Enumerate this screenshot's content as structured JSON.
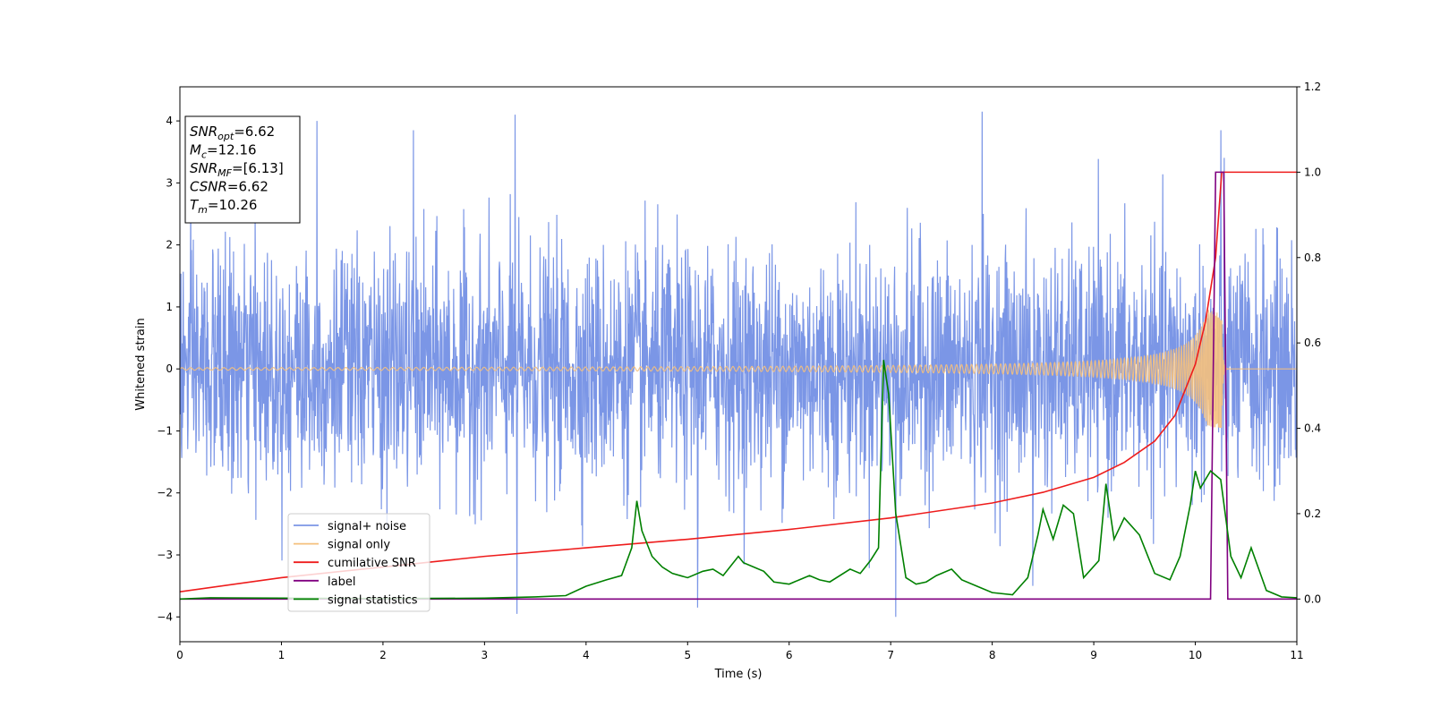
{
  "chart_data": {
    "type": "line",
    "xlabel": "Time (s)",
    "ylabel": "Whitened strain",
    "xlim": [
      0,
      11
    ],
    "ylim_left": [
      -4.4,
      4.55
    ],
    "ylim_right": [
      -0.1,
      1.2
    ],
    "xticks": [
      0,
      1,
      2,
      3,
      4,
      5,
      6,
      7,
      8,
      9,
      10,
      11
    ],
    "yticks_left": [
      -4,
      -3,
      -2,
      -1,
      0,
      1,
      2,
      3,
      4
    ],
    "yticks_right": [
      0.0,
      0.2,
      0.4,
      0.6,
      0.8,
      1.0,
      1.2
    ],
    "ytick_labels_left": [
      "−4",
      "−3",
      "−2",
      "−1",
      "0",
      "1",
      "2",
      "3",
      "4"
    ],
    "ytick_labels_right": [
      "0.0",
      "0.2",
      "0.4",
      "0.6",
      "0.8",
      "1.0",
      "1.2"
    ],
    "legend_position": "lower-left",
    "textbox": {
      "lines": [
        {
          "sym": "SNR",
          "sub": "opt",
          "val": "=6.62"
        },
        {
          "sym": "M",
          "sub": "c",
          "val": "=12.16"
        },
        {
          "sym": "SNR",
          "sub": "MF",
          "val": "=[6.13]"
        },
        {
          "sym": "CSNR",
          "sub": "",
          "val": "=6.62"
        },
        {
          "sym": "T",
          "sub": "m",
          "val": "=10.26"
        }
      ]
    },
    "series": [
      {
        "name": "signal+ noise",
        "color": "#7b96e6",
        "axis": "left",
        "noise_std": 0.95,
        "clip": [
          -3.95,
          4.15
        ],
        "peaks": [
          [
            3.3,
            4.1
          ],
          [
            2.3,
            3.85
          ],
          [
            7.9,
            4.15
          ],
          [
            1.35,
            4.0
          ],
          [
            10.25,
            3.85
          ],
          [
            3.32,
            -3.95
          ],
          [
            7.05,
            -4.0
          ],
          [
            5.1,
            -3.85
          ],
          [
            8.4,
            -3.5
          ]
        ]
      },
      {
        "name": "signal only",
        "color": "#f5c07c",
        "axis": "left",
        "amplitude_start": 0.02,
        "merger_time": 10.26,
        "peak_amplitude": 0.95
      },
      {
        "name": "cumilative SNR",
        "color": "#ee1c1c",
        "axis": "right",
        "x": [
          0,
          1,
          2,
          3,
          4,
          5,
          6,
          7,
          8,
          8.5,
          9,
          9.3,
          9.6,
          9.8,
          10.0,
          10.1,
          10.2,
          10.26,
          11
        ],
        "y": [
          0.017,
          0.05,
          0.075,
          0.1,
          0.12,
          0.14,
          0.163,
          0.19,
          0.225,
          0.25,
          0.285,
          0.32,
          0.37,
          0.43,
          0.55,
          0.65,
          0.8,
          1.0,
          1.0
        ]
      },
      {
        "name": "label",
        "color": "#800080",
        "axis": "right",
        "x": [
          0,
          10.15,
          10.2,
          10.28,
          10.32,
          11
        ],
        "y": [
          0,
          0,
          1,
          1,
          0,
          0
        ]
      },
      {
        "name": "signal statistics",
        "color": "#008000",
        "axis": "right",
        "x": [
          0,
          0.3,
          1,
          2,
          3,
          3.5,
          3.8,
          4,
          4.2,
          4.35,
          4.45,
          4.5,
          4.55,
          4.65,
          4.75,
          4.85,
          5,
          5.15,
          5.25,
          5.35,
          5.5,
          5.55,
          5.65,
          5.75,
          5.85,
          6,
          6.1,
          6.2,
          6.3,
          6.4,
          6.6,
          6.7,
          6.8,
          6.88,
          6.93,
          6.98,
          7.05,
          7.15,
          7.25,
          7.35,
          7.45,
          7.6,
          7.7,
          7.85,
          8.0,
          8.2,
          8.35,
          8.45,
          8.5,
          8.6,
          8.7,
          8.8,
          8.9,
          9.05,
          9.12,
          9.2,
          9.3,
          9.45,
          9.6,
          9.75,
          9.85,
          9.95,
          10.0,
          10.05,
          10.15,
          10.25,
          10.35,
          10.45,
          10.55,
          10.7,
          10.85,
          11.0
        ],
        "y": [
          0.0,
          0.003,
          0.002,
          0.001,
          0.002,
          0.005,
          0.008,
          0.03,
          0.045,
          0.055,
          0.12,
          0.23,
          0.16,
          0.1,
          0.075,
          0.06,
          0.05,
          0.065,
          0.07,
          0.055,
          0.1,
          0.085,
          0.075,
          0.065,
          0.04,
          0.035,
          0.045,
          0.055,
          0.045,
          0.04,
          0.07,
          0.06,
          0.09,
          0.12,
          0.56,
          0.48,
          0.2,
          0.05,
          0.035,
          0.04,
          0.055,
          0.07,
          0.045,
          0.03,
          0.015,
          0.01,
          0.05,
          0.15,
          0.21,
          0.14,
          0.22,
          0.2,
          0.05,
          0.09,
          0.27,
          0.14,
          0.19,
          0.15,
          0.06,
          0.045,
          0.1,
          0.22,
          0.3,
          0.26,
          0.3,
          0.28,
          0.1,
          0.05,
          0.12,
          0.02,
          0.005,
          0.003
        ]
      }
    ]
  }
}
